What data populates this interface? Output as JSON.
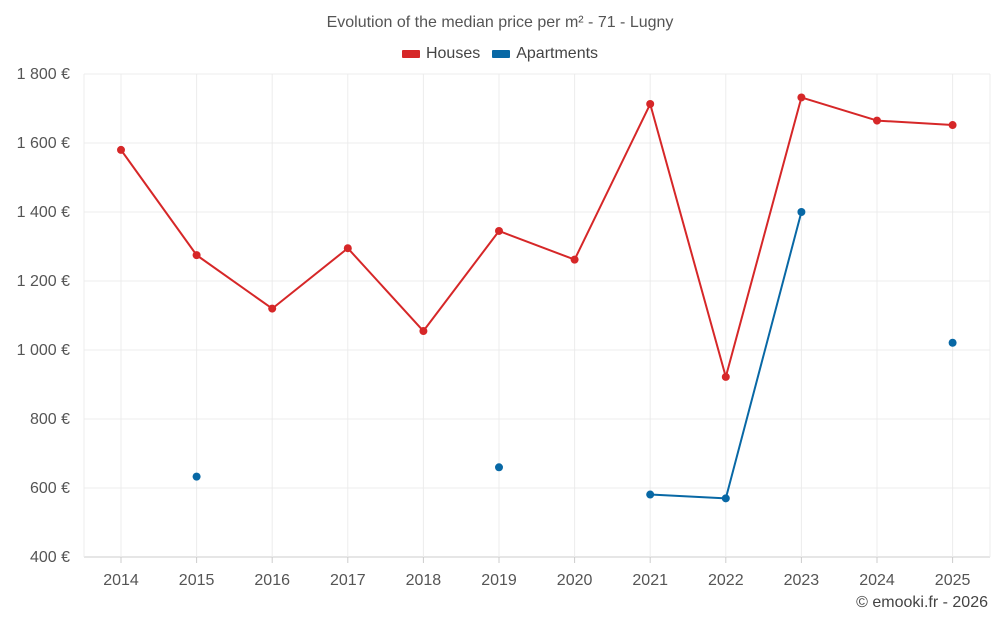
{
  "chart_data": {
    "type": "line",
    "title": "Evolution of the median price per m² - 71 - Lugny",
    "categories": [
      "2014",
      "2015",
      "2016",
      "2017",
      "2018",
      "2019",
      "2020",
      "2021",
      "2022",
      "2023",
      "2024",
      "2025"
    ],
    "series": [
      {
        "name": "Houses",
        "color": "#d62728",
        "values": [
          1580,
          1275,
          1120,
          1295,
          1055,
          1345,
          1262,
          1713,
          922,
          1732,
          1665,
          1652
        ]
      },
      {
        "name": "Apartments",
        "color": "#0868a5",
        "values": [
          null,
          633,
          null,
          null,
          null,
          660,
          null,
          581,
          570,
          1400,
          null,
          1021
        ]
      }
    ],
    "ylim": [
      400,
      1800
    ],
    "yticks": [
      1800,
      1600,
      1400,
      1200,
      1000,
      800,
      600,
      400
    ],
    "ytick_labels": [
      "1 800 €",
      "1 600 €",
      "1 400 €",
      "1 200 €",
      "1 000 €",
      "800 €",
      "600 €",
      "400 €"
    ],
    "xlabel": "",
    "ylabel": "",
    "grid": true,
    "legend_position": "top-center"
  },
  "credit": "© emooki.fr - 2026"
}
